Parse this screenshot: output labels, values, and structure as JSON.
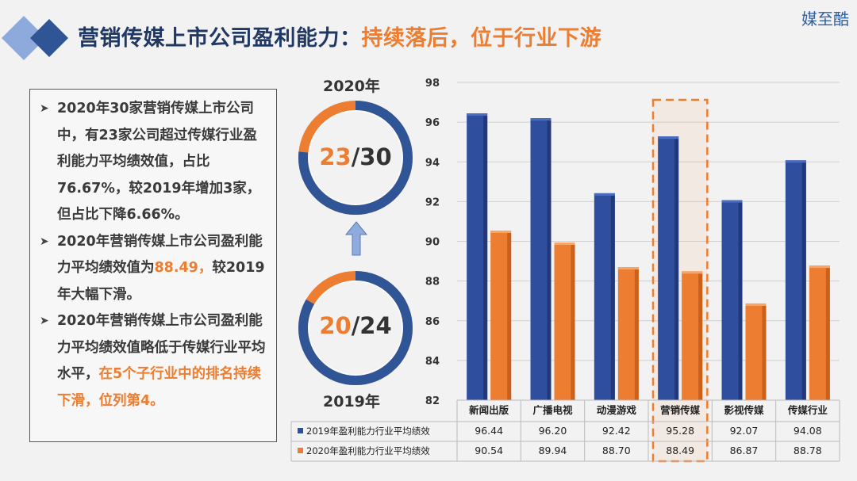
{
  "header": {
    "title_main": "营销传媒上市公司盈利能力：",
    "title_highlight": "持续落后，位于行业下游",
    "brand": "媒至酷"
  },
  "textbox": {
    "bullets": [
      {
        "text": "2020年30家营销传媒上市公司中，有23家公司超过传媒行业盈利能力平均绩效值，占比76.67%，较2019年增加3家，但占比下降6.66%。"
      },
      {
        "text_before": "2020年营销传媒上市公司盈利能力平均绩效值为",
        "highlight": "88.49，",
        "text_after": "较2019年大幅下滑。"
      },
      {
        "text_before": "2020年营销传媒上市公司盈利能力平均绩效值略低于传媒行业平均水平，",
        "highlight": "在5个子行业中的排名持续下滑，位列第4。"
      }
    ]
  },
  "donuts": {
    "top": {
      "year": "2020年",
      "count": "23",
      "total": "/30",
      "fraction": 0.7667
    },
    "bottom": {
      "year": "2019年",
      "count": "20",
      "total": "/24",
      "fraction": 0.8333
    }
  },
  "chart_data": {
    "type": "bar",
    "categories": [
      "新闻出版",
      "广播电视",
      "动漫游戏",
      "营销传媒",
      "影视传媒",
      "传媒行业"
    ],
    "series": [
      {
        "name": "2019年盈利能力行业平均绩效",
        "values": [
          96.44,
          96.2,
          92.42,
          95.28,
          92.07,
          94.08
        ],
        "color": "#2f4f9e"
      },
      {
        "name": "2020年盈利能力行业平均绩效",
        "values": [
          90.54,
          89.94,
          88.7,
          88.49,
          86.87,
          88.78
        ],
        "color": "#ed7d31"
      }
    ],
    "table_values": [
      [
        "96.44",
        "96.20",
        "92.42",
        "95.28",
        "92.07",
        "94.08"
      ],
      [
        "90.54",
        "89.94",
        "88.70",
        "88.49",
        "86.87",
        "88.78"
      ]
    ],
    "ylim": [
      82,
      98
    ],
    "yticks": [
      "98",
      "96",
      "94",
      "92",
      "90",
      "88",
      "86",
      "84",
      "82"
    ],
    "highlighted_category": "营销传媒",
    "grid": true,
    "legend": "table-bottom"
  }
}
